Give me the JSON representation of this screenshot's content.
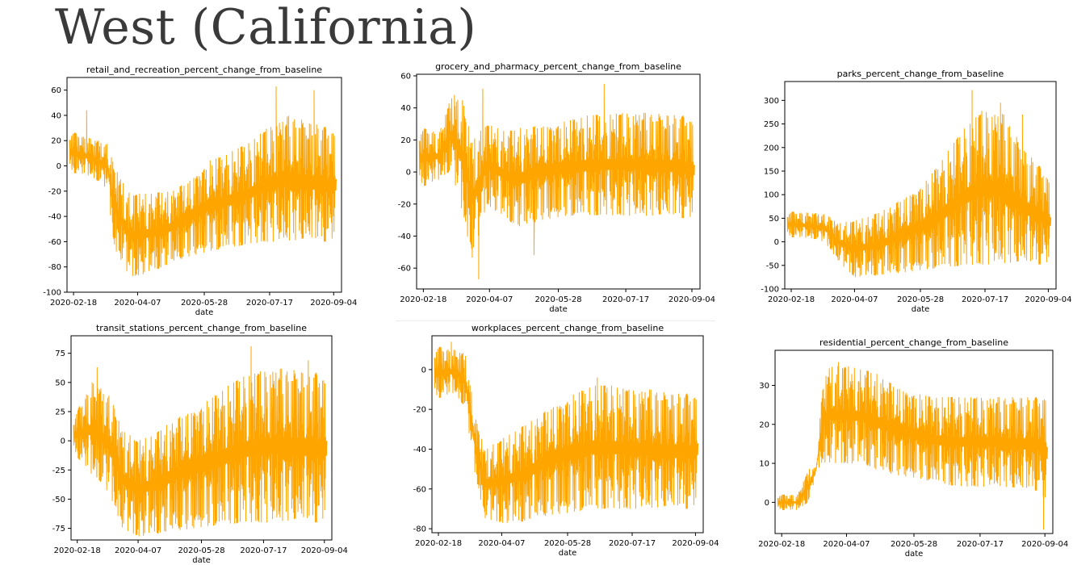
{
  "page": {
    "title": "West (California)"
  },
  "colors": {
    "series": "#ffa500",
    "axis": "#000000",
    "title": "#3a3a3a"
  },
  "x_tick_labels": [
    "2020-02-18",
    "2020-04-07",
    "2020-05-28",
    "2020-07-17",
    "2020-09-04"
  ],
  "chart_data": [
    {
      "type": "line",
      "title": "retail_and_recreation_percent_change_from_baseline",
      "xlabel": "date",
      "x_ticks": [
        "2020-02-18",
        "2020-04-07",
        "2020-05-28",
        "2020-07-17",
        "2020-09-04"
      ],
      "x_range": [
        "2020-02-13",
        "2020-09-10"
      ],
      "ylim": [
        -100,
        70
      ],
      "y_ticks": [
        -100,
        -80,
        -60,
        -40,
        -20,
        0,
        20,
        40,
        60
      ],
      "series": [
        {
          "color": "#ffa500",
          "x": [
            "2020-02-15",
            "2020-03-01",
            "2020-03-15",
            "2020-03-20",
            "2020-04-01",
            "2020-04-15",
            "2020-05-01",
            "2020-05-15",
            "2020-06-01",
            "2020-06-15",
            "2020-07-01",
            "2020-07-15",
            "2020-08-01",
            "2020-08-15",
            "2020-09-01",
            "2020-09-06"
          ],
          "low": [
            -5,
            -8,
            -18,
            -65,
            -88,
            -85,
            -78,
            -72,
            -68,
            -65,
            -62,
            -60,
            -60,
            -60,
            -60,
            -58
          ],
          "high": [
            28,
            22,
            18,
            0,
            -22,
            -22,
            -20,
            -12,
            5,
            10,
            18,
            30,
            40,
            35,
            30,
            28
          ],
          "peaks": [
            {
              "x": "2020-02-28",
              "y": 44
            },
            {
              "x": "2020-07-22",
              "y": 63
            },
            {
              "x": "2020-08-20",
              "y": 60
            }
          ]
        }
      ]
    },
    {
      "type": "line",
      "title": "grocery_and_pharmacy_percent_change_from_baseline",
      "xlabel": "date",
      "x_ticks": [
        "2020-02-18",
        "2020-04-07",
        "2020-05-28",
        "2020-07-17",
        "2020-09-04"
      ],
      "x_range": [
        "2020-02-13",
        "2020-09-10"
      ],
      "ylim": [
        -73,
        61
      ],
      "y_ticks": [
        -60,
        -40,
        -20,
        0,
        20,
        40,
        60
      ],
      "series": [
        {
          "color": "#ffa500",
          "x": [
            "2020-02-15",
            "2020-03-01",
            "2020-03-10",
            "2020-03-18",
            "2020-03-25",
            "2020-04-05",
            "2020-04-20",
            "2020-05-01",
            "2020-05-15",
            "2020-06-01",
            "2020-06-15",
            "2020-07-01",
            "2020-07-15",
            "2020-08-01",
            "2020-08-15",
            "2020-09-01",
            "2020-09-06"
          ],
          "low": [
            -10,
            -5,
            0,
            -25,
            -55,
            -20,
            -30,
            -35,
            -30,
            -28,
            -27,
            -27,
            -27,
            -28,
            -28,
            -29,
            -30
          ],
          "high": [
            28,
            25,
            48,
            45,
            20,
            30,
            25,
            28,
            30,
            32,
            35,
            36,
            37,
            37,
            36,
            35,
            32
          ],
          "peaks": [
            {
              "x": "2020-03-12",
              "y": 48
            },
            {
              "x": "2020-04-02",
              "y": 52
            },
            {
              "x": "2020-07-01",
              "y": 55
            },
            {
              "x": "2020-03-30",
              "y": -67
            },
            {
              "x": "2020-05-10",
              "y": -52
            }
          ]
        }
      ]
    },
    {
      "type": "line",
      "title": "parks_percent_change_from_baseline",
      "xlabel": "date",
      "x_ticks": [
        "2020-02-18",
        "2020-04-07",
        "2020-05-28",
        "2020-07-17",
        "2020-09-04"
      ],
      "x_range": [
        "2020-02-13",
        "2020-09-10"
      ],
      "ylim": [
        -100,
        340
      ],
      "y_ticks": [
        -100,
        -50,
        0,
        50,
        100,
        150,
        200,
        250,
        300
      ],
      "series": [
        {
          "color": "#ffa500",
          "x": [
            "2020-02-15",
            "2020-03-01",
            "2020-03-15",
            "2020-03-25",
            "2020-04-07",
            "2020-04-20",
            "2020-05-01",
            "2020-05-15",
            "2020-06-01",
            "2020-06-15",
            "2020-07-01",
            "2020-07-15",
            "2020-08-01",
            "2020-08-15",
            "2020-09-01",
            "2020-09-06"
          ],
          "low": [
            10,
            8,
            0,
            -40,
            -75,
            -72,
            -70,
            -65,
            -60,
            -55,
            -50,
            -48,
            -48,
            -48,
            -48,
            -45
          ],
          "high": [
            65,
            62,
            60,
            40,
            45,
            55,
            70,
            95,
            130,
            180,
            240,
            280,
            270,
            200,
            150,
            130
          ],
          "peaks": [
            {
              "x": "2020-07-07",
              "y": 322
            },
            {
              "x": "2020-07-29",
              "y": 295
            },
            {
              "x": "2020-08-15",
              "y": 270
            }
          ]
        }
      ]
    },
    {
      "type": "line",
      "title": "transit_stations_percent_change_from_baseline",
      "xlabel": "date",
      "x_ticks": [
        "2020-02-18",
        "2020-04-07",
        "2020-05-28",
        "2020-07-17",
        "2020-09-04"
      ],
      "x_range": [
        "2020-02-13",
        "2020-09-10"
      ],
      "ylim": [
        -85,
        90
      ],
      "y_ticks": [
        -75,
        -50,
        -25,
        0,
        25,
        50,
        75
      ],
      "series": [
        {
          "color": "#ffa500",
          "x": [
            "2020-02-15",
            "2020-03-01",
            "2020-03-15",
            "2020-03-25",
            "2020-04-07",
            "2020-04-20",
            "2020-05-01",
            "2020-05-15",
            "2020-06-01",
            "2020-06-15",
            "2020-07-01",
            "2020-07-15",
            "2020-08-01",
            "2020-08-15",
            "2020-09-01",
            "2020-09-06"
          ],
          "low": [
            -10,
            -30,
            -45,
            -75,
            -82,
            -80,
            -78,
            -76,
            -74,
            -72,
            -70,
            -70,
            -70,
            -70,
            -70,
            -68
          ],
          "high": [
            20,
            50,
            40,
            10,
            0,
            5,
            15,
            25,
            35,
            45,
            55,
            60,
            62,
            60,
            58,
            55
          ],
          "peaks": [
            {
              "x": "2020-03-05",
              "y": 63
            },
            {
              "x": "2020-07-07",
              "y": 81
            },
            {
              "x": "2020-08-22",
              "y": 69
            }
          ]
        }
      ]
    },
    {
      "type": "line",
      "title": "workplaces_percent_change_from_baseline",
      "xlabel": "date",
      "x_ticks": [
        "2020-02-18",
        "2020-04-07",
        "2020-05-28",
        "2020-07-17",
        "2020-09-04"
      ],
      "x_range": [
        "2020-02-13",
        "2020-09-10"
      ],
      "ylim": [
        -82,
        17
      ],
      "y_ticks": [
        -80,
        -60,
        -40,
        -20,
        0
      ],
      "series": [
        {
          "color": "#ffa500",
          "x": [
            "2020-02-15",
            "2020-03-01",
            "2020-03-10",
            "2020-03-18",
            "2020-03-25",
            "2020-04-07",
            "2020-04-20",
            "2020-05-01",
            "2020-05-15",
            "2020-06-01",
            "2020-06-15",
            "2020-07-01",
            "2020-07-15",
            "2020-08-01",
            "2020-08-15",
            "2020-09-01",
            "2020-09-06"
          ],
          "low": [
            -15,
            -12,
            -20,
            -55,
            -75,
            -77,
            -77,
            -75,
            -73,
            -72,
            -70,
            -70,
            -70,
            -70,
            -70,
            -70,
            -68
          ],
          "high": [
            12,
            10,
            8,
            -25,
            -40,
            -35,
            -30,
            -25,
            -18,
            -12,
            -8,
            -8,
            -10,
            -10,
            -12,
            -12,
            -12
          ],
          "peaks": [
            {
              "x": "2020-02-28",
              "y": 14
            },
            {
              "x": "2020-06-20",
              "y": -4
            }
          ]
        }
      ]
    },
    {
      "type": "line",
      "title": "residential_percent_change_from_baseline",
      "xlabel": "date",
      "x_ticks": [
        "2020-02-18",
        "2020-04-07",
        "2020-05-28",
        "2020-07-17",
        "2020-09-04"
      ],
      "x_range": [
        "2020-02-13",
        "2020-09-10"
      ],
      "ylim": [
        -8,
        39
      ],
      "y_ticks": [
        0,
        10,
        20,
        30
      ],
      "series": [
        {
          "color": "#ffa500",
          "x": [
            "2020-02-15",
            "2020-03-01",
            "2020-03-10",
            "2020-03-15",
            "2020-03-20",
            "2020-03-25",
            "2020-04-07",
            "2020-04-20",
            "2020-05-01",
            "2020-05-15",
            "2020-06-01",
            "2020-06-15",
            "2020-07-01",
            "2020-07-15",
            "2020-08-01",
            "2020-08-15",
            "2020-09-01",
            "2020-09-06"
          ],
          "low": [
            -2,
            -2,
            0,
            8,
            10,
            10,
            10,
            10,
            8,
            7,
            6,
            5,
            4,
            4,
            4,
            3,
            3,
            -3
          ],
          "high": [
            2,
            2,
            9,
            9,
            30,
            35,
            35,
            34,
            33,
            30,
            28,
            27,
            27,
            27,
            27,
            27,
            27,
            28
          ],
          "peaks": [
            {
              "x": "2020-04-01",
              "y": 36
            },
            {
              "x": "2020-09-03",
              "y": -7
            }
          ]
        }
      ]
    }
  ]
}
